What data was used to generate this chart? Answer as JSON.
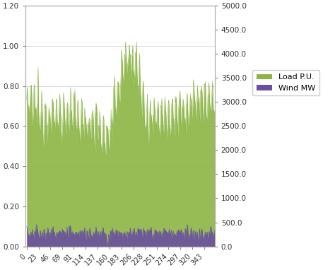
{
  "load_color": "#8cb544",
  "wind_color": "#6b4fa0",
  "left_ylim": [
    0.0,
    1.2
  ],
  "right_ylim": [
    0.0,
    5000.0
  ],
  "left_yticks": [
    0.0,
    0.2,
    0.4,
    0.6,
    0.8,
    1.0,
    1.2
  ],
  "right_yticks": [
    0.0,
    500.0,
    1000.0,
    1500.0,
    2000.0,
    2500.0,
    3000.0,
    3500.0,
    4000.0,
    4500.0,
    5000.0
  ],
  "xticks": [
    0,
    23,
    46,
    69,
    91,
    114,
    137,
    160,
    183,
    206,
    228,
    251,
    274,
    297,
    320,
    343
  ],
  "xlim": [
    -2,
    363
  ],
  "legend_labels": [
    "Load P.U.",
    "Wind MW"
  ],
  "background_color": "#ffffff",
  "grid_color": "#cccccc",
  "n_points": 364,
  "wind_max_mw": 400,
  "wind_mean_mw": 300
}
